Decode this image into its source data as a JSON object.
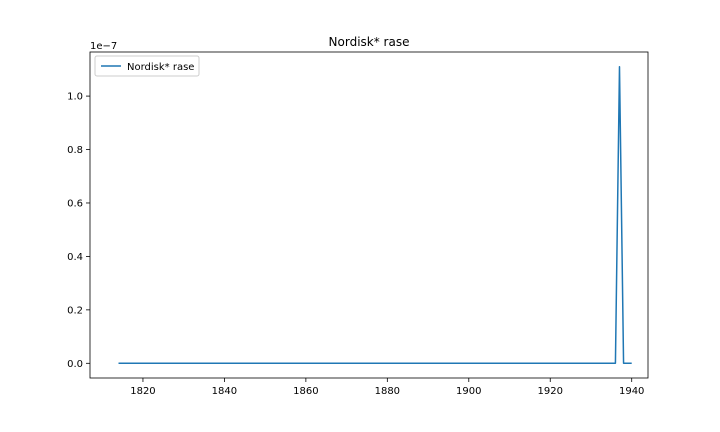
{
  "chart_data": {
    "type": "line",
    "title": "Nordisk* rase",
    "xlabel": "",
    "ylabel": "",
    "y_offset_label": "1e−7",
    "xlim": [
      1807,
      1944
    ],
    "ylim": [
      -0.055,
      1.165
    ],
    "xticks": [
      1820,
      1840,
      1860,
      1880,
      1900,
      1920,
      1940
    ],
    "xtick_labels": [
      "1820",
      "1840",
      "1860",
      "1880",
      "1900",
      "1920",
      "1940"
    ],
    "yticks": [
      0.0,
      0.2,
      0.4,
      0.6,
      0.8,
      1.0
    ],
    "ytick_labels": [
      "0.0",
      "0.2",
      "0.4",
      "0.6",
      "0.8",
      "1.0"
    ],
    "grid": false,
    "legend_position": "upper-left",
    "series": [
      {
        "name": "Nordisk* rase",
        "color": "#1f77b4",
        "x": [
          1814,
          1936,
          1937,
          1938,
          1940
        ],
        "y": [
          0.0,
          0.0,
          1.11,
          0.0,
          0.0
        ]
      }
    ]
  }
}
